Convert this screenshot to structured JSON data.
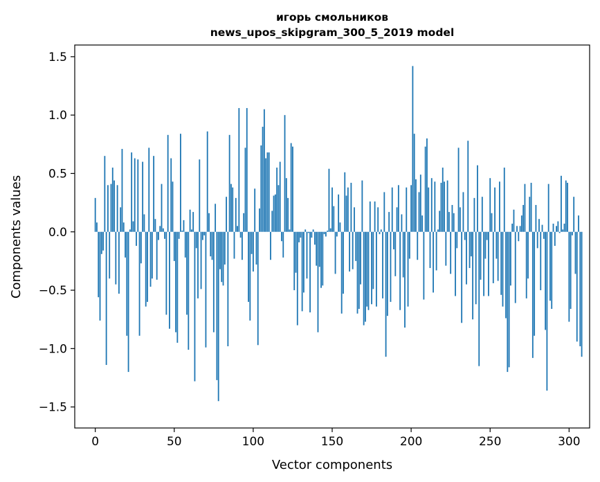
{
  "chart_data": {
    "type": "bar",
    "title": "игорь смольников",
    "subtitle": "news_upos_skipgram_300_5_2019 model",
    "xlabel": "Vector components",
    "ylabel": "Components values",
    "xlim": [
      -13,
      313
    ],
    "ylim": [
      -1.68,
      1.6
    ],
    "xticks": [
      0,
      50,
      100,
      150,
      200,
      250,
      300
    ],
    "yticks": [
      1.5,
      1.0,
      0.5,
      0.0,
      -0.5,
      -1.0,
      -1.5
    ],
    "ytick_labels": [
      "1.5",
      "1.0",
      "0.5",
      "0.0",
      "−0.5",
      "−1.0",
      "−1.5"
    ],
    "grid": false,
    "bar_color": "#1f77b4",
    "values": [
      0.29,
      0.08,
      -0.56,
      -0.76,
      -0.19,
      -0.16,
      0.65,
      -1.14,
      0.4,
      -0.4,
      0.41,
      0.55,
      0.44,
      -0.45,
      0.4,
      -0.53,
      0.21,
      0.71,
      0.08,
      -0.22,
      -0.89,
      -1.2,
      0.02,
      0.68,
      0.09,
      0.63,
      -0.12,
      0.62,
      -0.89,
      -0.27,
      0.6,
      0.15,
      -0.64,
      -0.6,
      0.72,
      -0.47,
      -0.4,
      0.65,
      0.11,
      -0.41,
      -0.07,
      0.05,
      0.41,
      0.03,
      -0.06,
      -0.71,
      0.83,
      -0.83,
      0.63,
      0.43,
      -0.25,
      -0.86,
      -0.95,
      -0.06,
      0.84,
      0.01,
      0.1,
      -0.22,
      -0.71,
      -1.01,
      0.19,
      0.02,
      0.17,
      -1.28,
      -0.14,
      -0.57,
      0.62,
      -0.49,
      -0.07,
      -0.03,
      -0.99,
      0.86,
      0.16,
      -0.21,
      -0.24,
      -0.86,
      0.24,
      -1.27,
      -1.45,
      -0.32,
      -0.43,
      -0.46,
      -0.28,
      0.3,
      -0.98,
      0.83,
      0.41,
      0.38,
      -0.23,
      0.29,
      0.05,
      1.06,
      -0.05,
      -0.24,
      0.16,
      0.72,
      1.06,
      -0.6,
      -0.76,
      -0.19,
      -0.34,
      0.37,
      -0.28,
      -0.97,
      0.2,
      0.74,
      0.9,
      1.05,
      0.63,
      0.68,
      0.68,
      -0.24,
      0.18,
      0.31,
      0.32,
      0.55,
      0.4,
      0.6,
      -0.08,
      -0.22,
      1.0,
      0.46,
      0.29,
      0.02,
      0.76,
      0.73,
      -0.5,
      -0.35,
      -0.8,
      -0.09,
      -0.05,
      -0.68,
      -0.52,
      0.02,
      -0.4,
      -0.01,
      -0.69,
      -0.05,
      0.02,
      -0.11,
      -0.29,
      -0.86,
      -0.3,
      -0.48,
      -0.46,
      -0.02,
      -0.04,
      0.01,
      0.54,
      0.03,
      0.38,
      0.22,
      -0.36,
      -0.04,
      0.32,
      0.08,
      -0.7,
      -0.53,
      0.51,
      0.31,
      0.38,
      -0.34,
      0.42,
      -0.32,
      0.21,
      -0.25,
      -0.7,
      -0.66,
      -0.45,
      0.44,
      -0.8,
      -0.77,
      -0.64,
      -0.67,
      0.26,
      -0.62,
      -0.49,
      0.26,
      -0.64,
      0.21,
      -0.02,
      0.02,
      -0.57,
      0.34,
      -1.07,
      -0.72,
      0.17,
      -0.6,
      0.38,
      -0.15,
      -0.38,
      0.21,
      0.4,
      -0.67,
      0.15,
      -0.39,
      -0.82,
      0.38,
      -0.64,
      -0.23,
      0.4,
      1.42,
      0.84,
      0.45,
      -0.24,
      0.34,
      0.49,
      0.14,
      -0.58,
      0.73,
      0.8,
      0.38,
      -0.31,
      0.46,
      -0.52,
      0.43,
      -0.33,
      0.02,
      0.18,
      0.42,
      0.55,
      0.43,
      -0.29,
      0.44,
      0.17,
      -0.36,
      0.23,
      0.16,
      -0.55,
      -0.14,
      0.72,
      0.21,
      -0.78,
      0.34,
      -0.07,
      -0.45,
      0.78,
      -0.31,
      -0.21,
      -0.75,
      0.29,
      -0.62,
      0.57,
      -1.15,
      -0.41,
      0.3,
      -0.55,
      -0.23,
      -0.07,
      -0.55,
      0.46,
      0.16,
      -0.44,
      0.38,
      -0.23,
      -0.42,
      0.43,
      -0.54,
      -0.64,
      0.55,
      -0.74,
      -1.2,
      -1.16,
      -0.46,
      0.07,
      0.19,
      -0.61,
      0.05,
      -0.08,
      0.05,
      0.14,
      0.23,
      0.41,
      -0.57,
      -0.4,
      0.3,
      0.42,
      -1.08,
      -0.89,
      0.23,
      -0.14,
      0.11,
      -0.5,
      0.06,
      -0.06,
      -0.84,
      -1.36,
      0.41,
      -0.59,
      -0.66,
      0.07,
      -0.12,
      0.05,
      0.09,
      -0.01,
      0.48,
      0.02,
      0.07,
      0.44,
      0.42,
      -0.77,
      -0.66,
      -0.03,
      0.3,
      -0.36,
      -0.94,
      0.14,
      -0.98,
      -1.07
    ]
  }
}
